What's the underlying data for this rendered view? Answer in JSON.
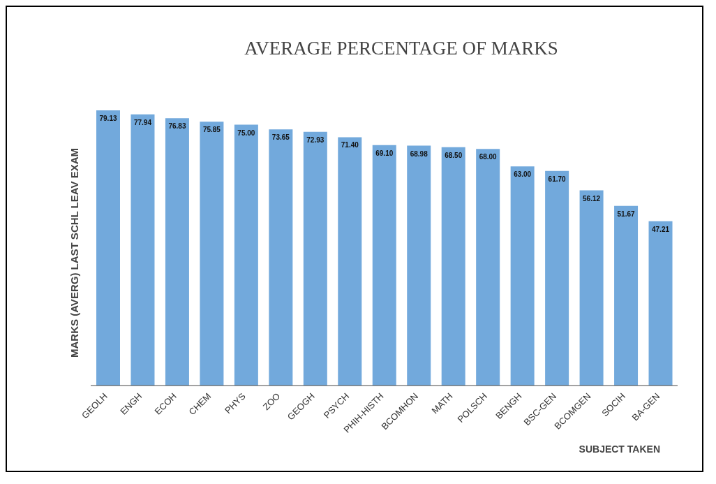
{
  "chart_data": {
    "type": "bar",
    "title": "AVERAGE PERCENTAGE OF MARKS",
    "xlabel": "SUBJECT TAKEN",
    "ylabel": "MARKS (AVERG)  LAST SCHL LEAV EXAM",
    "categories": [
      "GEOLH",
      "ENGH",
      "ECOH",
      "CHEM",
      "PHYS",
      "ZOO",
      "GEOGH",
      "PSYCH",
      "PHIH-HISTH",
      "BCOMHON",
      "MATH",
      "POLSCH",
      "BENGH",
      "BSC-GEN",
      "BCOMGEN",
      "SOCIH",
      "BA-GEN"
    ],
    "values": [
      79.13,
      77.94,
      76.83,
      75.85,
      75.0,
      73.65,
      72.93,
      71.4,
      69.1,
      68.98,
      68.5,
      68.0,
      63.0,
      61.7,
      56.12,
      51.67,
      47.21
    ],
    "value_labels": [
      "79.13",
      "77.94",
      "76.83",
      "75.85",
      "75.00",
      "73.65",
      "72.93",
      "71.40",
      "69.10",
      "68.98",
      "68.50",
      "68.00",
      "63.00",
      "61.70",
      "56.12",
      "51.67",
      "47.21"
    ],
    "color": "#72a9dc",
    "grid": false,
    "legend": false
  }
}
